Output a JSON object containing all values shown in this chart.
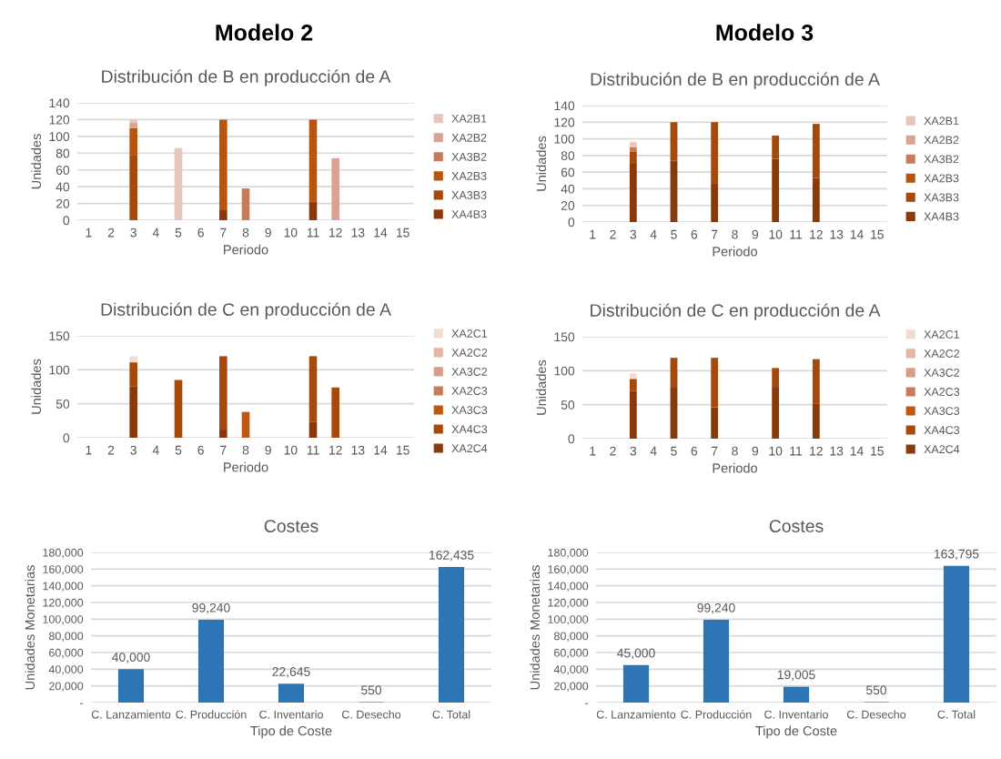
{
  "chart_data": [
    {
      "type": "bar",
      "stacked": true,
      "annotations": [
        "Modelo 2"
      ],
      "title": "Distribución de B en producción de A",
      "xlabel": "Periodo",
      "ylabel": "Unidades",
      "categories": [
        "1",
        "2",
        "3",
        "4",
        "5",
        "6",
        "7",
        "8",
        "9",
        "10",
        "11",
        "12",
        "13",
        "14",
        "15"
      ],
      "ylim": [
        0,
        140
      ],
      "yticks": [
        0,
        20,
        40,
        60,
        80,
        100,
        120,
        140
      ],
      "grid": "y",
      "legend": "right",
      "series": [
        {
          "name": "XA4B3",
          "color": "#8a3a08",
          "values": [
            null,
            null,
            null,
            null,
            null,
            null,
            12,
            null,
            null,
            null,
            22,
            null,
            null,
            null,
            null
          ]
        },
        {
          "name": "XA3B3",
          "color": "#a64a0c",
          "values": [
            null,
            null,
            78,
            null,
            null,
            null,
            null,
            null,
            null,
            null,
            null,
            null,
            null,
            null,
            null
          ]
        },
        {
          "name": "XA2B3",
          "color": "#b9540f",
          "values": [
            null,
            null,
            32,
            null,
            null,
            null,
            108,
            null,
            null,
            null,
            98,
            null,
            null,
            null,
            null
          ]
        },
        {
          "name": "XA3B2",
          "color": "#c97a5b",
          "values": [
            null,
            null,
            null,
            null,
            null,
            null,
            null,
            38,
            null,
            null,
            null,
            null,
            null,
            null,
            null
          ]
        },
        {
          "name": "XA2B2",
          "color": "#d8a392",
          "values": [
            null,
            null,
            6,
            null,
            null,
            null,
            null,
            null,
            null,
            null,
            null,
            74,
            null,
            null,
            null
          ]
        },
        {
          "name": "XA2B1",
          "color": "#e6c5ba",
          "values": [
            null,
            null,
            4,
            null,
            86,
            null,
            null,
            null,
            null,
            null,
            null,
            null,
            null,
            null,
            null
          ]
        }
      ]
    },
    {
      "type": "bar",
      "stacked": true,
      "annotations": [
        "Modelo 3"
      ],
      "title": "Distribución de B en producción de A",
      "xlabel": "Periodo",
      "ylabel": "Unidades",
      "categories": [
        "1",
        "2",
        "3",
        "4",
        "5",
        "6",
        "7",
        "8",
        "9",
        "10",
        "11",
        "12",
        "13",
        "14",
        "15"
      ],
      "ylim": [
        0,
        140
      ],
      "yticks": [
        0,
        20,
        40,
        60,
        80,
        100,
        120,
        140
      ],
      "grid": "y",
      "legend": "right",
      "series": [
        {
          "name": "XA4B3",
          "color": "#8a3a08",
          "values": [
            null,
            null,
            70,
            null,
            74,
            null,
            46,
            null,
            null,
            76,
            null,
            53,
            null,
            null,
            null
          ]
        },
        {
          "name": "XA3B3",
          "color": "#a64a0c",
          "values": [
            null,
            null,
            15,
            null,
            46,
            null,
            74,
            null,
            null,
            28,
            null,
            65,
            null,
            null,
            null
          ]
        },
        {
          "name": "XA2B3",
          "color": "#b9540f",
          "values": [
            null,
            null,
            null,
            null,
            null,
            null,
            null,
            null,
            null,
            null,
            null,
            null,
            null,
            null,
            null
          ]
        },
        {
          "name": "XA3B2",
          "color": "#c97a5b",
          "values": [
            null,
            null,
            5,
            null,
            null,
            null,
            null,
            null,
            null,
            null,
            null,
            null,
            null,
            null,
            null
          ]
        },
        {
          "name": "XA2B2",
          "color": "#d8a392",
          "values": [
            null,
            null,
            null,
            null,
            null,
            null,
            null,
            null,
            null,
            null,
            null,
            null,
            null,
            null,
            null
          ]
        },
        {
          "name": "XA2B1",
          "color": "#e6c5ba",
          "values": [
            null,
            null,
            6,
            null,
            null,
            null,
            null,
            null,
            null,
            null,
            null,
            null,
            null,
            null,
            null
          ]
        }
      ]
    },
    {
      "type": "bar",
      "stacked": true,
      "title": "Distribución de C en producción de A",
      "xlabel": "Periodo",
      "ylabel": "Unidades",
      "categories": [
        "1",
        "2",
        "3",
        "4",
        "5",
        "6",
        "7",
        "8",
        "9",
        "10",
        "11",
        "12",
        "13",
        "14",
        "15"
      ],
      "ylim": [
        0,
        150
      ],
      "yticks": [
        0,
        50,
        100,
        150
      ],
      "grid": "y",
      "legend": "right",
      "series": [
        {
          "name": "XA2C4",
          "color": "#8a3a08",
          "values": [
            null,
            null,
            76,
            null,
            null,
            null,
            12,
            null,
            null,
            null,
            23,
            null,
            null,
            null,
            null
          ]
        },
        {
          "name": "XA4C3",
          "color": "#a64a0c",
          "values": [
            null,
            null,
            35,
            null,
            85,
            null,
            108,
            null,
            null,
            null,
            97,
            74,
            null,
            null,
            null
          ]
        },
        {
          "name": "XA3C3",
          "color": "#c0560f",
          "values": [
            null,
            null,
            null,
            null,
            null,
            null,
            null,
            38,
            null,
            null,
            null,
            null,
            null,
            null,
            null
          ]
        },
        {
          "name": "XA2C3",
          "color": "#c97a5b",
          "values": [
            null,
            null,
            null,
            null,
            null,
            null,
            null,
            null,
            null,
            null,
            null,
            null,
            null,
            null,
            null
          ]
        },
        {
          "name": "XA3C2",
          "color": "#d79d89",
          "values": [
            null,
            null,
            null,
            null,
            null,
            null,
            null,
            null,
            null,
            null,
            null,
            null,
            null,
            null,
            null
          ]
        },
        {
          "name": "XA2C2",
          "color": "#e2b5a6",
          "values": [
            null,
            null,
            null,
            null,
            null,
            null,
            null,
            null,
            null,
            null,
            null,
            null,
            null,
            null,
            null
          ]
        },
        {
          "name": "XA2C1",
          "color": "#f2dbd2",
          "values": [
            null,
            null,
            9,
            null,
            null,
            null,
            null,
            null,
            null,
            null,
            null,
            null,
            null,
            null,
            null
          ]
        }
      ]
    },
    {
      "type": "bar",
      "stacked": true,
      "title": "Distribución de C en producción de A",
      "xlabel": "Periodo",
      "ylabel": "Unidades",
      "categories": [
        "1",
        "2",
        "3",
        "4",
        "5",
        "6",
        "7",
        "8",
        "9",
        "10",
        "11",
        "12",
        "13",
        "14",
        "15"
      ],
      "ylim": [
        0,
        150
      ],
      "yticks": [
        0,
        50,
        100,
        150
      ],
      "grid": "y",
      "legend": "right",
      "series": [
        {
          "name": "XA2C4",
          "color": "#8a3a08",
          "values": [
            null,
            null,
            70,
            null,
            75,
            null,
            46,
            null,
            null,
            75,
            null,
            52,
            null,
            null,
            null
          ]
        },
        {
          "name": "XA4C3",
          "color": "#a64a0c",
          "values": [
            null,
            null,
            18,
            null,
            44,
            null,
            73,
            null,
            null,
            29,
            null,
            65,
            null,
            null,
            null
          ]
        },
        {
          "name": "XA3C3",
          "color": "#c0560f",
          "values": [
            null,
            null,
            null,
            null,
            null,
            null,
            null,
            null,
            null,
            null,
            null,
            null,
            null,
            null,
            null
          ]
        },
        {
          "name": "XA2C3",
          "color": "#c97a5b",
          "values": [
            null,
            null,
            null,
            null,
            null,
            null,
            null,
            null,
            null,
            null,
            null,
            null,
            null,
            null,
            null
          ]
        },
        {
          "name": "XA3C2",
          "color": "#d79d89",
          "values": [
            null,
            null,
            null,
            null,
            null,
            null,
            null,
            null,
            null,
            null,
            null,
            null,
            null,
            null,
            null
          ]
        },
        {
          "name": "XA2C2",
          "color": "#e2b5a6",
          "values": [
            null,
            null,
            null,
            null,
            null,
            null,
            null,
            null,
            null,
            null,
            null,
            null,
            null,
            null,
            null
          ]
        },
        {
          "name": "XA2C1",
          "color": "#f2dbd2",
          "values": [
            null,
            null,
            8,
            null,
            null,
            null,
            null,
            null,
            null,
            null,
            null,
            null,
            null,
            null,
            null
          ]
        }
      ]
    },
    {
      "type": "bar",
      "title": "Costes",
      "xlabel": "Tipo de Coste",
      "ylabel": "Unidades Monetarias",
      "categories": [
        "C. Lanzamiento",
        "C. Producción",
        "C. Inventario",
        "C. Desecho",
        "C. Total"
      ],
      "values": [
        40000,
        99240,
        22645,
        550,
        162435
      ],
      "value_labels": [
        "40,000",
        "99,240",
        "22,645",
        "550",
        "162,435"
      ],
      "color": "#2e75b6",
      "ylim": [
        0,
        180000
      ],
      "yticks": [
        {
          "value": 0,
          "label": "-"
        },
        {
          "value": 20000,
          "label": "20,000"
        },
        {
          "value": 40000,
          "label": "40,000"
        },
        {
          "value": 60000,
          "label": "60,000"
        },
        {
          "value": 80000,
          "label": "80,000"
        },
        {
          "value": 100000,
          "label": "100,000"
        },
        {
          "value": 120000,
          "label": "120,000"
        },
        {
          "value": 140000,
          "label": "140,000"
        },
        {
          "value": 160000,
          "label": "160,000"
        },
        {
          "value": 180000,
          "label": "180,000"
        }
      ],
      "grid": "y"
    },
    {
      "type": "bar",
      "title": "Costes",
      "xlabel": "Tipo de Coste",
      "ylabel": "Unidades Monetarias",
      "categories": [
        "C. Lanzamiento",
        "C. Producción",
        "C. Inventario",
        "C. Desecho",
        "C. Total"
      ],
      "values": [
        45000,
        99240,
        19005,
        550,
        163795
      ],
      "value_labels": [
        "45,000",
        "99,240",
        "19,005",
        "550",
        "163,795"
      ],
      "color": "#2e75b6",
      "ylim": [
        0,
        180000
      ],
      "yticks": [
        {
          "value": 0,
          "label": "-"
        },
        {
          "value": 20000,
          "label": "20,000"
        },
        {
          "value": 40000,
          "label": "40,000"
        },
        {
          "value": 60000,
          "label": "60,000"
        },
        {
          "value": 80000,
          "label": "80,000"
        },
        {
          "value": 100000,
          "label": "100,000"
        },
        {
          "value": 120000,
          "label": "120,000"
        },
        {
          "value": 140000,
          "label": "140,000"
        },
        {
          "value": 160000,
          "label": "160,000"
        },
        {
          "value": 180000,
          "label": "180,000"
        }
      ],
      "grid": "y"
    }
  ]
}
